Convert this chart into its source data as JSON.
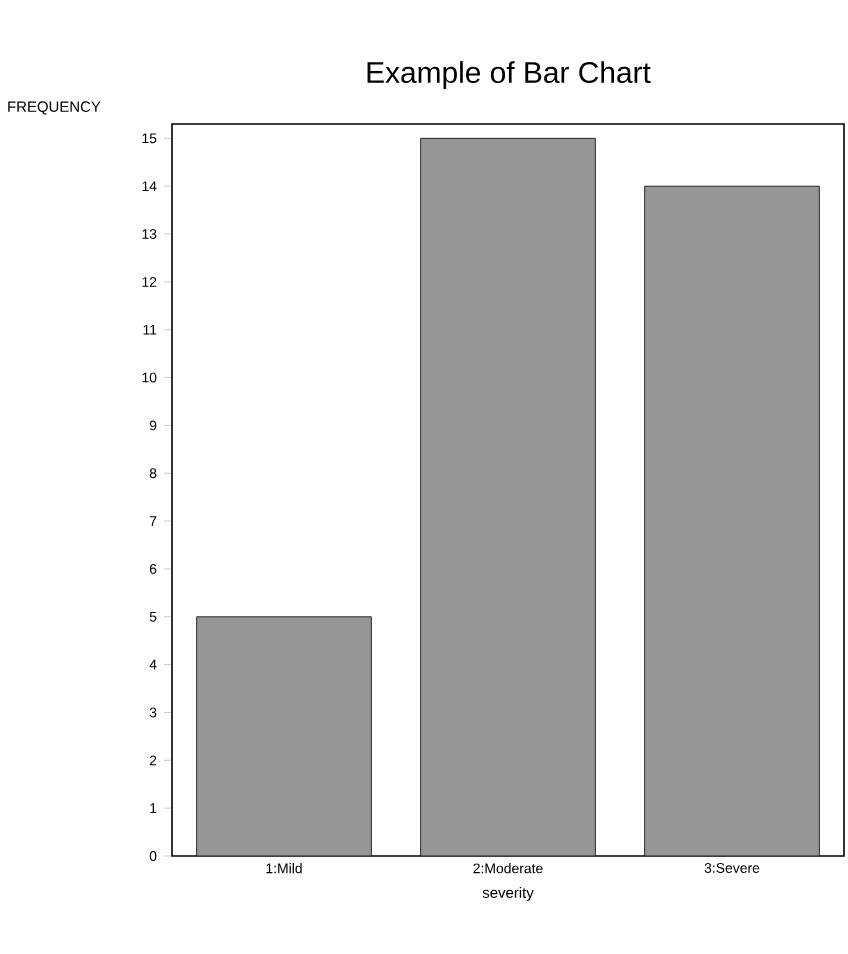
{
  "chart_data": {
    "type": "bar",
    "title": "Example of Bar Chart",
    "xlabel": "severity",
    "ylabel": "FREQUENCY",
    "categories": [
      "1:Mild",
      "2:Moderate",
      "3:Severe"
    ],
    "values": [
      5,
      15,
      14
    ],
    "color": "#969696",
    "ylim": [
      0,
      15.3
    ],
    "yticks": [
      0,
      1,
      2,
      3,
      4,
      5,
      6,
      7,
      8,
      9,
      10,
      11,
      12,
      13,
      14,
      15
    ]
  }
}
